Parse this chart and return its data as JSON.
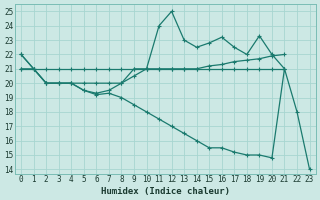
{
  "xlabel": "Humidex (Indice chaleur)",
  "x": [
    0,
    1,
    2,
    3,
    4,
    5,
    6,
    7,
    8,
    9,
    10,
    11,
    12,
    13,
    14,
    15,
    16,
    17,
    18,
    19,
    20,
    21,
    22,
    23
  ],
  "series_flat": [
    21,
    21,
    21,
    21,
    21,
    21,
    21,
    21,
    21,
    21,
    21,
    21,
    21,
    21,
    21,
    21,
    21,
    21,
    21,
    21,
    21,
    21,
    null,
    null
  ],
  "series_rise": [
    21,
    21,
    20,
    20,
    20,
    20,
    20,
    20,
    20,
    20.5,
    21,
    21,
    21,
    21,
    21,
    21.2,
    21.3,
    21.5,
    21.6,
    21.7,
    21.9,
    22,
    null,
    null
  ],
  "series_volatile": [
    22,
    21,
    20,
    20,
    20,
    19.5,
    19.3,
    19.5,
    20,
    21,
    21,
    24,
    25,
    23,
    22.5,
    22.8,
    23.2,
    22.5,
    22,
    23.3,
    22,
    21,
    null,
    null
  ],
  "series_diag": [
    22,
    21,
    20,
    20,
    20,
    19.5,
    19.2,
    19.3,
    19,
    18.5,
    18,
    17.5,
    17,
    16.5,
    16,
    15.5,
    15.5,
    15.2,
    15,
    15,
    14.8,
    21,
    18,
    14
  ],
  "ylim_min": 13.7,
  "ylim_max": 25.5,
  "xlim_min": -0.5,
  "xlim_max": 23.5,
  "yticks": [
    14,
    15,
    16,
    17,
    18,
    19,
    20,
    21,
    22,
    23,
    24,
    25
  ],
  "xticks": [
    0,
    1,
    2,
    3,
    4,
    5,
    6,
    7,
    8,
    9,
    10,
    11,
    12,
    13,
    14,
    15,
    16,
    17,
    18,
    19,
    20,
    21,
    22,
    23
  ],
  "bg_color": "#cce8e4",
  "grid_color": "#a8d5d0",
  "line_color": "#1a7a6e",
  "linewidth": 0.9,
  "markersize": 3.5,
  "tick_fontsize": 5.5,
  "xlabel_fontsize": 6.5
}
